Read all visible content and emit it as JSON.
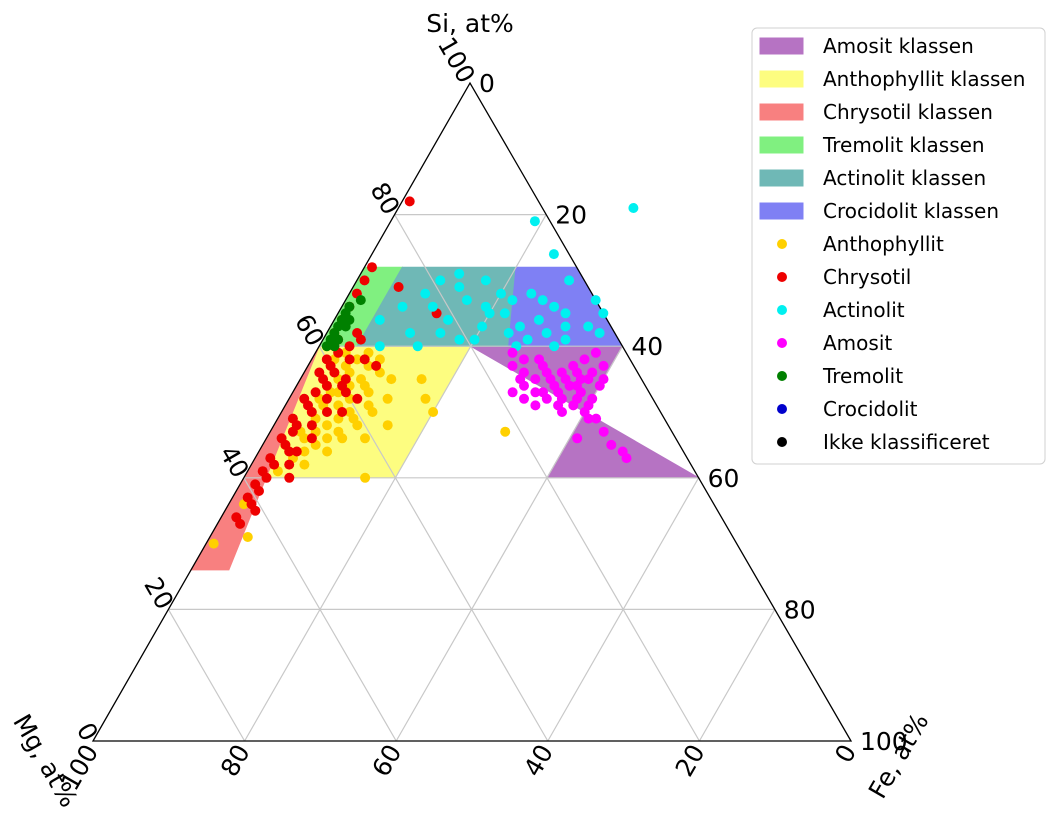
{
  "chart_data": {
    "type": "ternary-scatter",
    "axes": {
      "top": {
        "label": "Si, at%",
        "ticks": [
          "0",
          "20",
          "40",
          "60",
          "80",
          "100"
        ]
      },
      "right": {
        "label": "Fe, at%",
        "ticks": [
          "0",
          "20",
          "40",
          "60",
          "80",
          "100"
        ]
      },
      "left": {
        "label": "Mg, at%",
        "ticks": [
          "0",
          "20",
          "40",
          "60",
          "80",
          "100"
        ]
      },
      "range": [
        0,
        100
      ],
      "grid": true
    },
    "legend": {
      "placement": "top-right",
      "entries": [
        {
          "name": "Amosit klassen",
          "kind": "patch",
          "color": "#b673c3"
        },
        {
          "name": "Anthophyllit klassen",
          "kind": "patch",
          "color": "#fdfd80"
        },
        {
          "name": "Chrysotil klassen",
          "kind": "patch",
          "color": "#f88080"
        },
        {
          "name": "Tremolit klassen",
          "kind": "patch",
          "color": "#80f080"
        },
        {
          "name": "Actinolit klassen",
          "kind": "patch",
          "color": "#6fb8b6"
        },
        {
          "name": "Crocidolit klassen",
          "kind": "patch",
          "color": "#7f80f4"
        },
        {
          "name": "Anthophyllit",
          "kind": "marker",
          "color": "#ffd000"
        },
        {
          "name": "Chrysotil",
          "kind": "marker",
          "color": "#ee0000"
        },
        {
          "name": "Actinolit",
          "kind": "marker",
          "color": "#00f0f0"
        },
        {
          "name": "Amosit",
          "kind": "marker",
          "color": "#ff00ff"
        },
        {
          "name": "Tremolit",
          "kind": "marker",
          "color": "#008000"
        },
        {
          "name": "Crocidolit",
          "kind": "marker",
          "color": "#0000cc"
        },
        {
          "name": "Ikke klassificeret",
          "kind": "marker",
          "color": "#000000"
        }
      ]
    },
    "regions": [
      {
        "name": "Amosit klassen",
        "color": "#b673c3",
        "vertices_si_fe": [
          [
            60,
            40
          ],
          [
            40,
            40
          ],
          [
            40,
            60
          ],
          [
            60,
            20
          ]
        ]
      },
      {
        "name": "Anthophyllit klassen",
        "color": "#fdfd80",
        "vertices_si_fe": [
          [
            60,
            20
          ],
          [
            60,
            0
          ],
          [
            40,
            0
          ],
          [
            40,
            20
          ]
        ]
      },
      {
        "name": "Chrysotil klassen",
        "color": "#f88080",
        "vertices_si_fe": [
          [
            60,
            0
          ],
          [
            40,
            0
          ],
          [
            26,
            0
          ],
          [
            26,
            5
          ]
        ]
      },
      {
        "name": "Tremolit klassen",
        "color": "#80f080",
        "vertices_si_fe": [
          [
            72,
            0
          ],
          [
            72,
            5
          ],
          [
            60,
            5
          ],
          [
            60,
            0
          ]
        ]
      },
      {
        "name": "Actinolit klassen",
        "color": "#6fb8b6",
        "vertices_si_fe": [
          [
            72,
            5
          ],
          [
            72,
            20
          ],
          [
            60,
            25
          ],
          [
            60,
            5
          ]
        ]
      },
      {
        "name": "Crocidolit klassen",
        "color": "#7f80f4",
        "vertices_si_fe": [
          [
            72,
            20
          ],
          [
            72,
            28
          ],
          [
            60,
            40
          ],
          [
            60,
            25
          ]
        ]
      }
    ],
    "series": [
      {
        "name": "Anthophyllit",
        "color": "#ffd000",
        "points_si_fe": [
          [
            42,
            3
          ],
          [
            43,
            5
          ],
          [
            44,
            6
          ],
          [
            44,
            4
          ],
          [
            45,
            7
          ],
          [
            45,
            3
          ],
          [
            46,
            5
          ],
          [
            46,
            8
          ],
          [
            46,
            10
          ],
          [
            47,
            4
          ],
          [
            47,
            6
          ],
          [
            47,
            9
          ],
          [
            48,
            3
          ],
          [
            48,
            7
          ],
          [
            48,
            11
          ],
          [
            49,
            5
          ],
          [
            49,
            8
          ],
          [
            49,
            10
          ],
          [
            50,
            4
          ],
          [
            50,
            6
          ],
          [
            50,
            9
          ],
          [
            50,
            12
          ],
          [
            51,
            5
          ],
          [
            51,
            7
          ],
          [
            51,
            11
          ],
          [
            52,
            4
          ],
          [
            52,
            8
          ],
          [
            52,
            13
          ],
          [
            53,
            5
          ],
          [
            53,
            6
          ],
          [
            53,
            10
          ],
          [
            54,
            4
          ],
          [
            54,
            7
          ],
          [
            54,
            9
          ],
          [
            55,
            5
          ],
          [
            55,
            8
          ],
          [
            55,
            12
          ],
          [
            56,
            4
          ],
          [
            56,
            6
          ],
          [
            56,
            10
          ],
          [
            57,
            5
          ],
          [
            57,
            8
          ],
          [
            58,
            3
          ],
          [
            58,
            6
          ],
          [
            58,
            9
          ],
          [
            59,
            4
          ],
          [
            59,
            7
          ],
          [
            50,
            20
          ],
          [
            55,
            16
          ],
          [
            48,
            15
          ],
          [
            46,
            13
          ],
          [
            44,
            9
          ],
          [
            42,
            7
          ],
          [
            41,
            4
          ],
          [
            36,
            2
          ],
          [
            31,
            5
          ],
          [
            30,
            1
          ],
          [
            40,
            16
          ],
          [
            47,
            31
          ],
          [
            52,
            18
          ]
        ]
      },
      {
        "name": "Chrysotil",
        "color": "#ee0000",
        "points_si_fe": [
          [
            82,
            1
          ],
          [
            72,
            1
          ],
          [
            70,
            1
          ],
          [
            68,
            1
          ],
          [
            66,
            1
          ],
          [
            64,
            1
          ],
          [
            62,
            1
          ],
          [
            61,
            2
          ],
          [
            60,
            2
          ],
          [
            59,
            3
          ],
          [
            58,
            2
          ],
          [
            57,
            3
          ],
          [
            56,
            2
          ],
          [
            55,
            3
          ],
          [
            54,
            4
          ],
          [
            53,
            3
          ],
          [
            52,
            2
          ],
          [
            51,
            3
          ],
          [
            50,
            4
          ],
          [
            49,
            2
          ],
          [
            48,
            3
          ],
          [
            47,
            3
          ],
          [
            46,
            2
          ],
          [
            45,
            3
          ],
          [
            44,
            4
          ],
          [
            43,
            2
          ],
          [
            42,
            3
          ],
          [
            41,
            2
          ],
          [
            40,
            3
          ],
          [
            39,
            2
          ],
          [
            38,
            3
          ],
          [
            37,
            2
          ],
          [
            36,
            3
          ],
          [
            35,
            4
          ],
          [
            34,
            2
          ],
          [
            33,
            3
          ],
          [
            60,
            4
          ],
          [
            58,
            5
          ],
          [
            56,
            4
          ],
          [
            54,
            6
          ],
          [
            52,
            5
          ],
          [
            50,
            6
          ],
          [
            48,
            5
          ],
          [
            46,
            6
          ],
          [
            44,
            5
          ],
          [
            42,
            5
          ],
          [
            40,
            6
          ],
          [
            55,
            6
          ],
          [
            53,
            7
          ],
          [
            50,
            8
          ],
          [
            61,
            5
          ],
          [
            62,
            4
          ],
          [
            65,
            13
          ],
          [
            69,
            6
          ],
          [
            58,
            7
          ],
          [
            57,
            9
          ],
          [
            52,
            9
          ]
        ]
      },
      {
        "name": "Actinolit",
        "color": "#00f0f0",
        "points_si_fe": [
          [
            81,
            31
          ],
          [
            79,
            19
          ],
          [
            74,
            24
          ],
          [
            71,
            13
          ],
          [
            70,
            11
          ],
          [
            70,
            17
          ],
          [
            69,
            14
          ],
          [
            68,
            20
          ],
          [
            68,
            24
          ],
          [
            67,
            16
          ],
          [
            67,
            26
          ],
          [
            66,
            12
          ],
          [
            66,
            19
          ],
          [
            66,
            28
          ],
          [
            65,
            22
          ],
          [
            65,
            30
          ],
          [
            64,
            15
          ],
          [
            64,
            27
          ],
          [
            63,
            25
          ],
          [
            63,
            31
          ],
          [
            62,
            24
          ],
          [
            62,
            29
          ],
          [
            61,
            27
          ],
          [
            61,
            32
          ],
          [
            60,
            31
          ],
          [
            60,
            26
          ],
          [
            63,
            20
          ],
          [
            61,
            18
          ],
          [
            60,
            8
          ],
          [
            62,
            11
          ],
          [
            65,
            35
          ],
          [
            63,
            34
          ],
          [
            67,
            33
          ],
          [
            70,
            28
          ],
          [
            64,
            6
          ],
          [
            66,
            8
          ],
          [
            68,
            10
          ],
          [
            60,
            13
          ],
          [
            61,
            20
          ],
          [
            65,
            20
          ],
          [
            62,
            15
          ],
          [
            67,
            22
          ],
          [
            62,
            36
          ]
        ]
      },
      {
        "name": "Amosit",
        "color": "#ff00ff",
        "points_si_fe": [
          [
            57,
            31
          ],
          [
            56,
            32
          ],
          [
            55,
            33
          ],
          [
            56,
            34
          ],
          [
            54,
            34
          ],
          [
            55,
            35
          ],
          [
            54,
            36
          ],
          [
            53,
            35
          ],
          [
            55,
            37
          ],
          [
            54,
            37
          ],
          [
            52,
            36
          ],
          [
            53,
            38
          ],
          [
            52,
            38
          ],
          [
            55,
            38
          ],
          [
            56,
            36
          ],
          [
            57,
            35
          ],
          [
            53,
            33
          ],
          [
            58,
            28
          ],
          [
            58,
            30
          ],
          [
            57,
            27
          ],
          [
            56,
            29
          ],
          [
            55,
            29
          ],
          [
            52,
            31
          ],
          [
            51,
            33
          ],
          [
            52,
            34
          ],
          [
            51,
            36
          ],
          [
            50,
            37
          ],
          [
            54,
            40
          ],
          [
            50,
            40
          ],
          [
            51,
            40
          ],
          [
            49,
            41
          ],
          [
            49,
            42
          ],
          [
            47,
            44
          ],
          [
            45,
            46
          ],
          [
            44,
            48
          ],
          [
            43,
            49
          ],
          [
            46,
            41
          ],
          [
            53,
            32
          ],
          [
            54,
            30
          ],
          [
            55,
            31
          ],
          [
            56,
            38
          ],
          [
            57,
            39
          ],
          [
            58,
            36
          ],
          [
            59,
            37
          ],
          [
            59,
            26
          ],
          [
            53,
            29
          ],
          [
            52,
            40
          ],
          [
            55,
            40
          ],
          [
            51,
            38
          ]
        ]
      },
      {
        "name": "Tremolit",
        "color": "#008000",
        "points_si_fe": [
          [
            66,
            1
          ],
          [
            65,
            1
          ],
          [
            64,
            1
          ],
          [
            63,
            1
          ],
          [
            62,
            1
          ],
          [
            61,
            1
          ],
          [
            60,
            1
          ],
          [
            67,
            2
          ],
          [
            63,
            2
          ],
          [
            61,
            2
          ],
          [
            64,
            2
          ],
          [
            60,
            2
          ]
        ]
      },
      {
        "name": "Crocidolit",
        "color": "#0000cc",
        "points_si_fe": []
      },
      {
        "name": "Ikke klassificeret",
        "color": "#000000",
        "points_si_fe": []
      }
    ]
  }
}
